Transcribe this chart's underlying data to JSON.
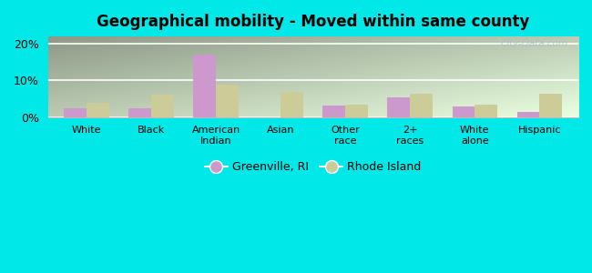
{
  "title": "Geographical mobility - Moved within same county",
  "categories": [
    "White",
    "Black",
    "American\nIndian",
    "Asian",
    "Other\nrace",
    "2+\nraces",
    "White\nalone",
    "Hispanic"
  ],
  "greenville_values": [
    2.5,
    2.3,
    17.0,
    0.0,
    3.2,
    5.5,
    2.8,
    1.5
  ],
  "rhode_island_values": [
    3.8,
    6.2,
    8.8,
    6.8,
    3.5,
    6.5,
    3.5,
    6.5
  ],
  "greenville_color": "#cc99cc",
  "rhode_island_color": "#cccc99",
  "ylim": [
    0,
    22
  ],
  "ytick_labels": [
    "0%",
    "10%",
    "20%"
  ],
  "outer_bg": "#00e8e8",
  "legend_labels": [
    "Greenville, RI",
    "Rhode Island"
  ],
  "bar_width": 0.35,
  "grad_top": "#c8e8b0",
  "grad_bottom": "#f0faf0"
}
